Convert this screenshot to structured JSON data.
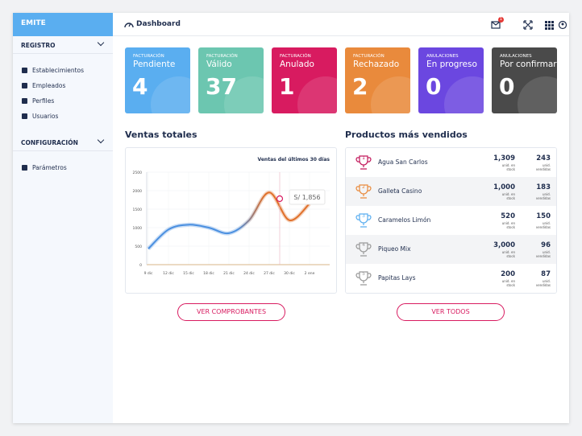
{
  "sidebar": {
    "brand": "EMITE",
    "groups": [
      {
        "title": "REGISTRO",
        "items": [
          "Establecimientos",
          "Empleados",
          "Perfiles",
          "Usuarios"
        ]
      },
      {
        "title": "CONFIGURACIÓN",
        "items": [
          "Parámetros"
        ]
      }
    ]
  },
  "header": {
    "title": "Dashboard",
    "badge": "1"
  },
  "cards": [
    {
      "kicker": "FACTURACIÓN",
      "title": "Pendiente",
      "value": "4",
      "color": "#5aaef0"
    },
    {
      "kicker": "FACTURACIÓN",
      "title": "Válido",
      "value": "37",
      "color": "#6cc6b0"
    },
    {
      "kicker": "FACTURACIÓN",
      "title": "Anulado",
      "value": "1",
      "color": "#d81b60"
    },
    {
      "kicker": "FACTURACIÓN",
      "title": "Rechazado",
      "value": "2",
      "color": "#e98a3c"
    },
    {
      "kicker": "ANULACIONES",
      "title": "En progreso",
      "value": "0",
      "color": "#6b47e0"
    },
    {
      "kicker": "ANULACIONES",
      "title": "Por confirmar",
      "value": "0",
      "color": "#4a4a4a"
    }
  ],
  "sales": {
    "heading": "Ventas totales",
    "button": "VER COMPROBANTES"
  },
  "chart_data": {
    "type": "line",
    "title": "Ventas del últimos 30 días",
    "categories": [
      "9 dic",
      "12 dic",
      "15 dic",
      "18 dic",
      "21 dic",
      "24 dic",
      "27 dic",
      "30 dic",
      "2 ene"
    ],
    "values": [
      430,
      950,
      1080,
      1000,
      850,
      1200,
      1950,
      1200,
      1650
    ],
    "color": "#4a8fe0",
    "ylim": [
      0,
      2500
    ],
    "yticks": [
      0,
      500,
      1000,
      1500,
      2000,
      2500
    ],
    "grid": true,
    "annotations": [
      "S/ 1,856"
    ]
  },
  "products": {
    "heading": "Productos más vendidos",
    "button": "VER TODOS",
    "stock_label": "unid. en stock",
    "sold_label": "unid. vendidas",
    "rows": [
      {
        "rank": "1",
        "name": "Agua San Carlos",
        "stock": "1,309",
        "sold": "243",
        "color": "#c2185b"
      },
      {
        "rank": "2",
        "name": "Galleta Casino",
        "stock": "1,000",
        "sold": "183",
        "color": "#e98a3c"
      },
      {
        "rank": "3",
        "name": "Caramelos Limón",
        "stock": "520",
        "sold": "150",
        "color": "#5aaef0"
      },
      {
        "rank": "4",
        "name": "Piqueo Mix",
        "stock": "3,000",
        "sold": "96",
        "color": "#999999"
      },
      {
        "rank": "5",
        "name": "Papitas Lays",
        "stock": "200",
        "sold": "87",
        "color": "#999999"
      }
    ]
  }
}
